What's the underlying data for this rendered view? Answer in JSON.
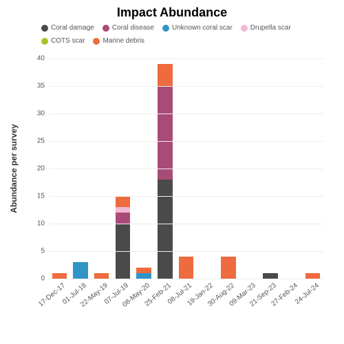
{
  "title": "Impact Abundance",
  "ylabel": "Abundance per survey",
  "ylim": [
    0,
    40
  ],
  "ytick_step": 5,
  "series": [
    {
      "key": "coral_damage",
      "label": "Coral damage",
      "color": "#4a4a4a"
    },
    {
      "key": "coral_disease",
      "label": "Coral disease",
      "color": "#a84b78"
    },
    {
      "key": "unknown_coral_scar",
      "label": "Unknown coral scar",
      "color": "#2f94c6"
    },
    {
      "key": "drupella_scar",
      "label": "Drupella scar",
      "color": "#f2b8d4"
    },
    {
      "key": "cots_scar",
      "label": "COTS scar",
      "color": "#a8c22a"
    },
    {
      "key": "marine_debris",
      "label": "Marine debris",
      "color": "#ee6a3f"
    }
  ],
  "categories": [
    "17-Dec-17",
    "01-Jul-18",
    "22-May-19",
    "07-Jul-19",
    "08-May-20",
    "25-Feb-21",
    "08-Jul-21",
    "19-Jan-22",
    "30-Aug-22",
    "09-Mar-23",
    "21-Sep-23",
    "27-Feb-24",
    "24-Jul-24"
  ],
  "stacks": [
    {
      "marine_debris": 1
    },
    {
      "unknown_coral_scar": 3
    },
    {
      "marine_debris": 1
    },
    {
      "coral_damage": 10,
      "coral_disease": 2,
      "drupella_scar": 1,
      "marine_debris": 2
    },
    {
      "unknown_coral_scar": 1,
      "marine_debris": 1
    },
    {
      "coral_damage": 18,
      "coral_disease": 17,
      "marine_debris": 4
    },
    {
      "marine_debris": 4
    },
    {},
    {
      "marine_debris": 4
    },
    {},
    {
      "coral_damage": 1
    },
    {},
    {
      "marine_debris": 1
    }
  ],
  "background_color": "#ffffff",
  "grid_color": "#eeeeee",
  "label_fontsize": 12,
  "tick_fontsize": 10,
  "title_fontsize": 18
}
